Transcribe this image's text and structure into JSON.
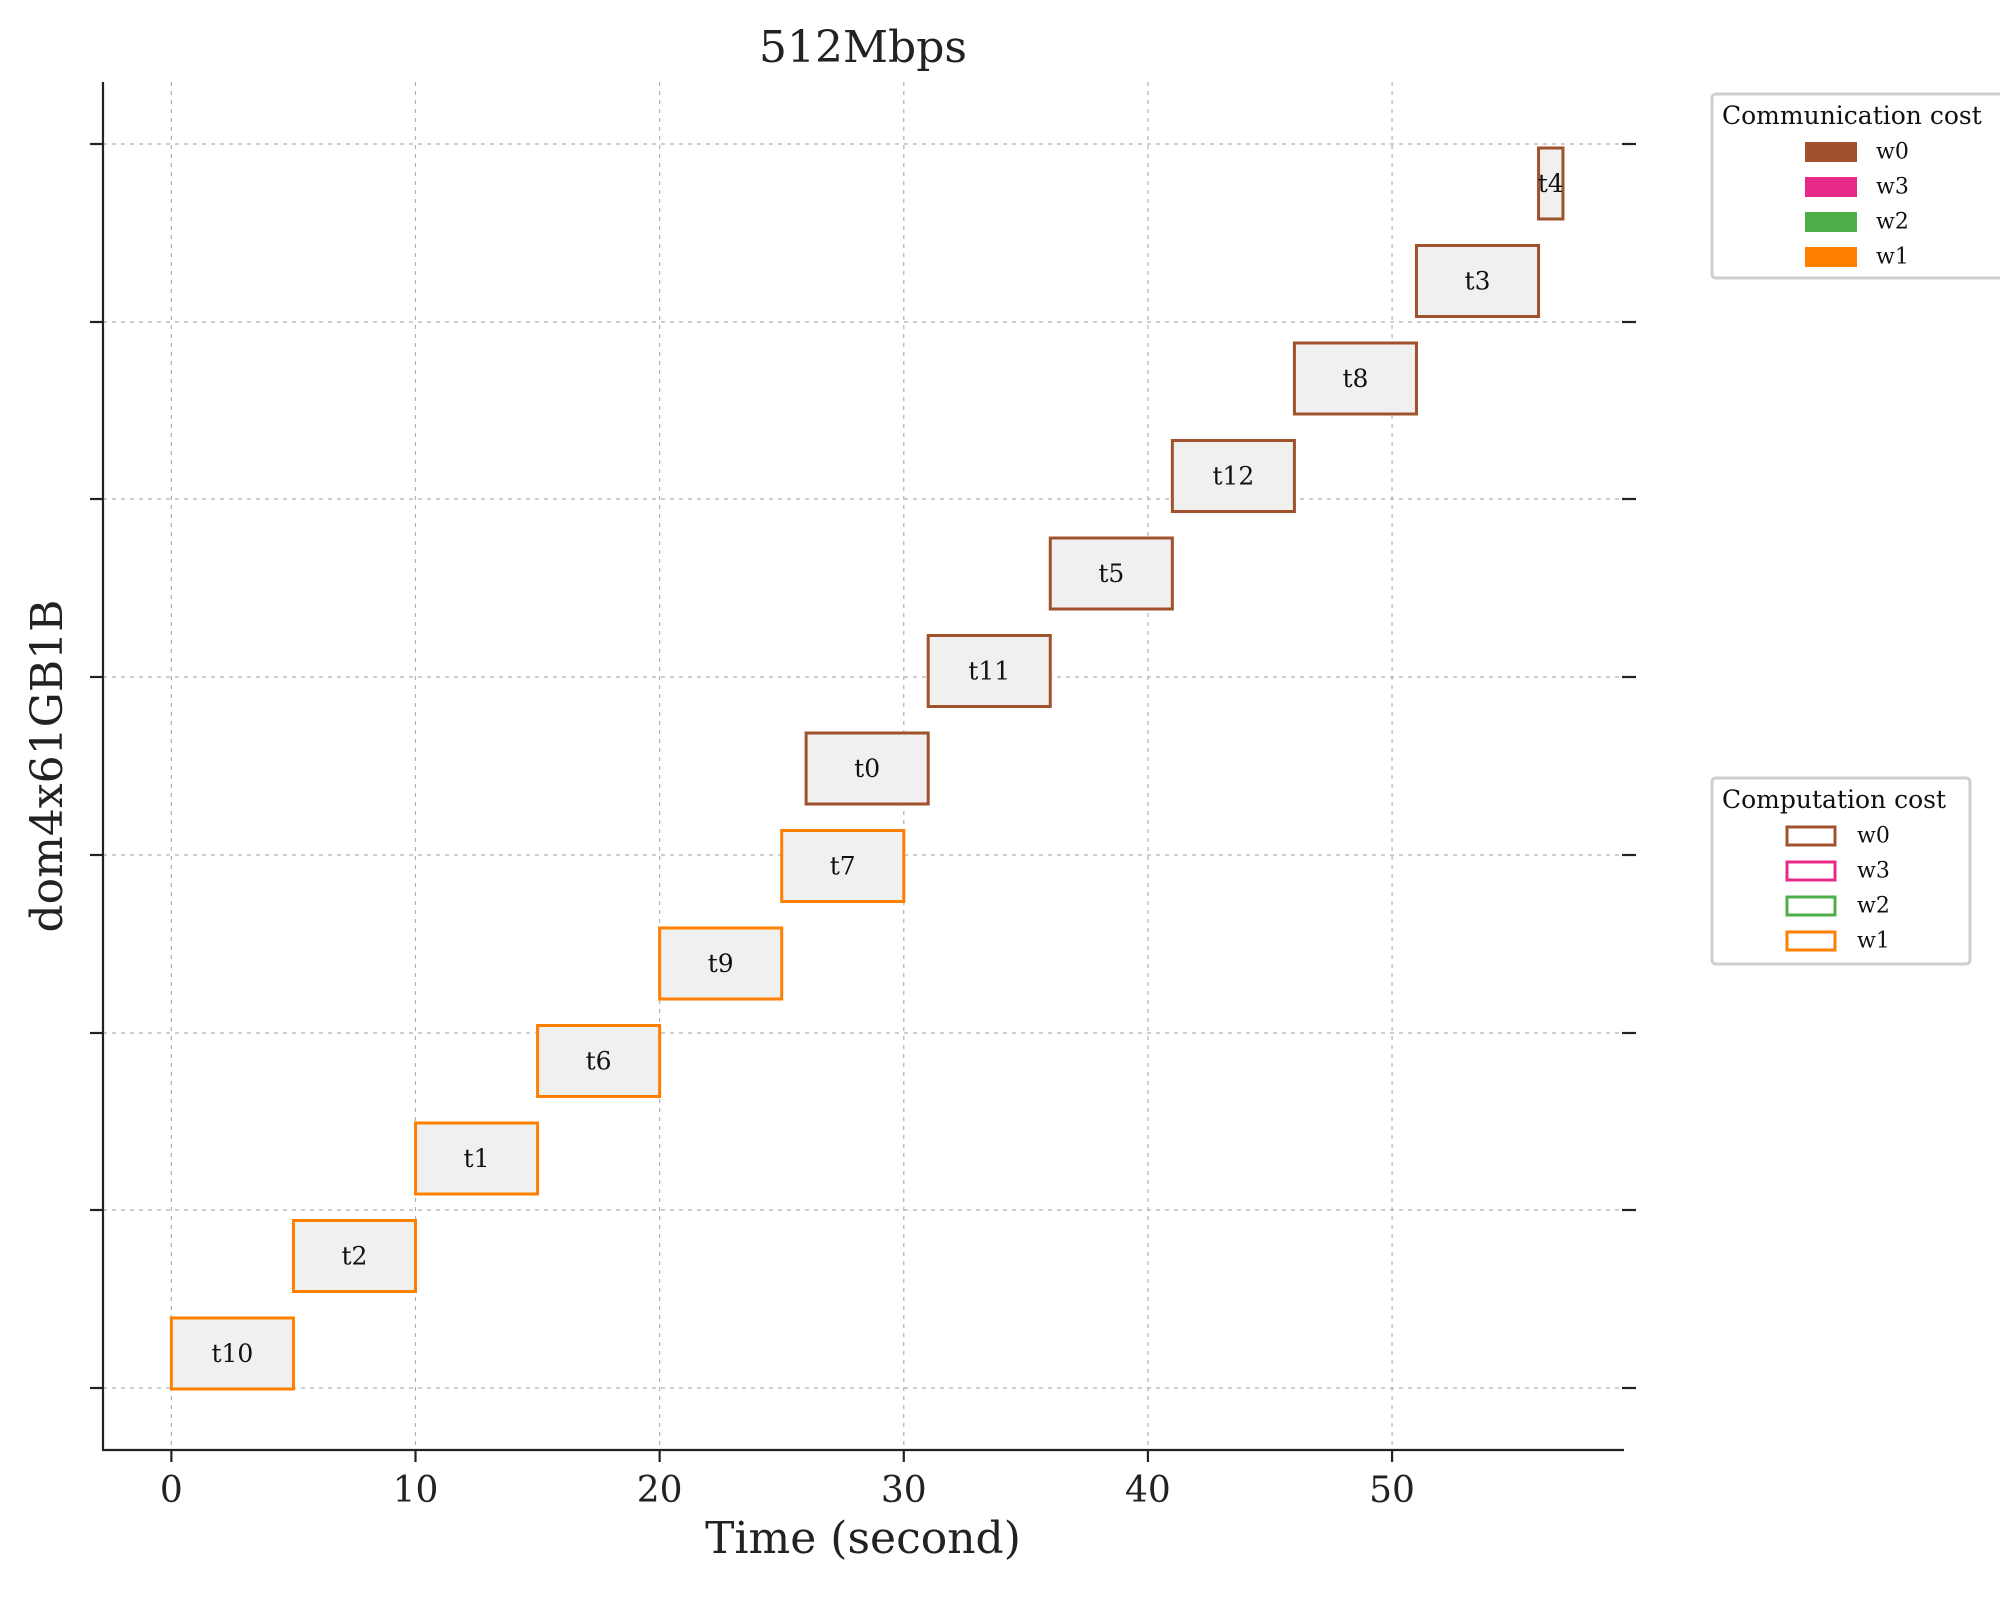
{
  "chart_data": {
    "type": "gantt",
    "title": "512Mbps",
    "xlabel": "Time (second)",
    "ylabel": "dom4x61GB1B",
    "xlim": [
      -2.8,
      59.5
    ],
    "xticks": [
      0,
      10,
      20,
      30,
      40,
      50
    ],
    "grid": true,
    "workers": [
      {
        "name": "w0",
        "color": "#a0522d"
      },
      {
        "name": "w3",
        "color": "#e7298a"
      },
      {
        "name": "w2",
        "color": "#4daf4a"
      },
      {
        "name": "w1",
        "color": "#ff7f00"
      }
    ],
    "tasks": [
      {
        "name": "t10",
        "start": 0,
        "end": 5,
        "worker": "w1"
      },
      {
        "name": "t2",
        "start": 5,
        "end": 10,
        "worker": "w1"
      },
      {
        "name": "t1",
        "start": 10,
        "end": 15,
        "worker": "w1"
      },
      {
        "name": "t6",
        "start": 15,
        "end": 20,
        "worker": "w1"
      },
      {
        "name": "t9",
        "start": 20,
        "end": 25,
        "worker": "w1"
      },
      {
        "name": "t7",
        "start": 25,
        "end": 30,
        "worker": "w1"
      },
      {
        "name": "t0",
        "start": 26,
        "end": 31,
        "worker": "w0"
      },
      {
        "name": "t11",
        "start": 31,
        "end": 36,
        "worker": "w0"
      },
      {
        "name": "t5",
        "start": 36,
        "end": 41,
        "worker": "w0"
      },
      {
        "name": "t12",
        "start": 41,
        "end": 46,
        "worker": "w0"
      },
      {
        "name": "t8",
        "start": 46,
        "end": 51,
        "worker": "w0"
      },
      {
        "name": "t3",
        "start": 51,
        "end": 56,
        "worker": "w0"
      },
      {
        "name": "t4",
        "start": 56,
        "end": 57,
        "worker": "w0"
      }
    ],
    "legends": [
      {
        "title": "Communication cost",
        "style": "filled",
        "placement": "top-right outside",
        "entries": [
          "w0",
          "w3",
          "w2",
          "w1"
        ]
      },
      {
        "title": "Computation cost",
        "style": "outline",
        "placement": "center-right outside",
        "entries": [
          "w0",
          "w3",
          "w2",
          "w1"
        ]
      }
    ]
  }
}
